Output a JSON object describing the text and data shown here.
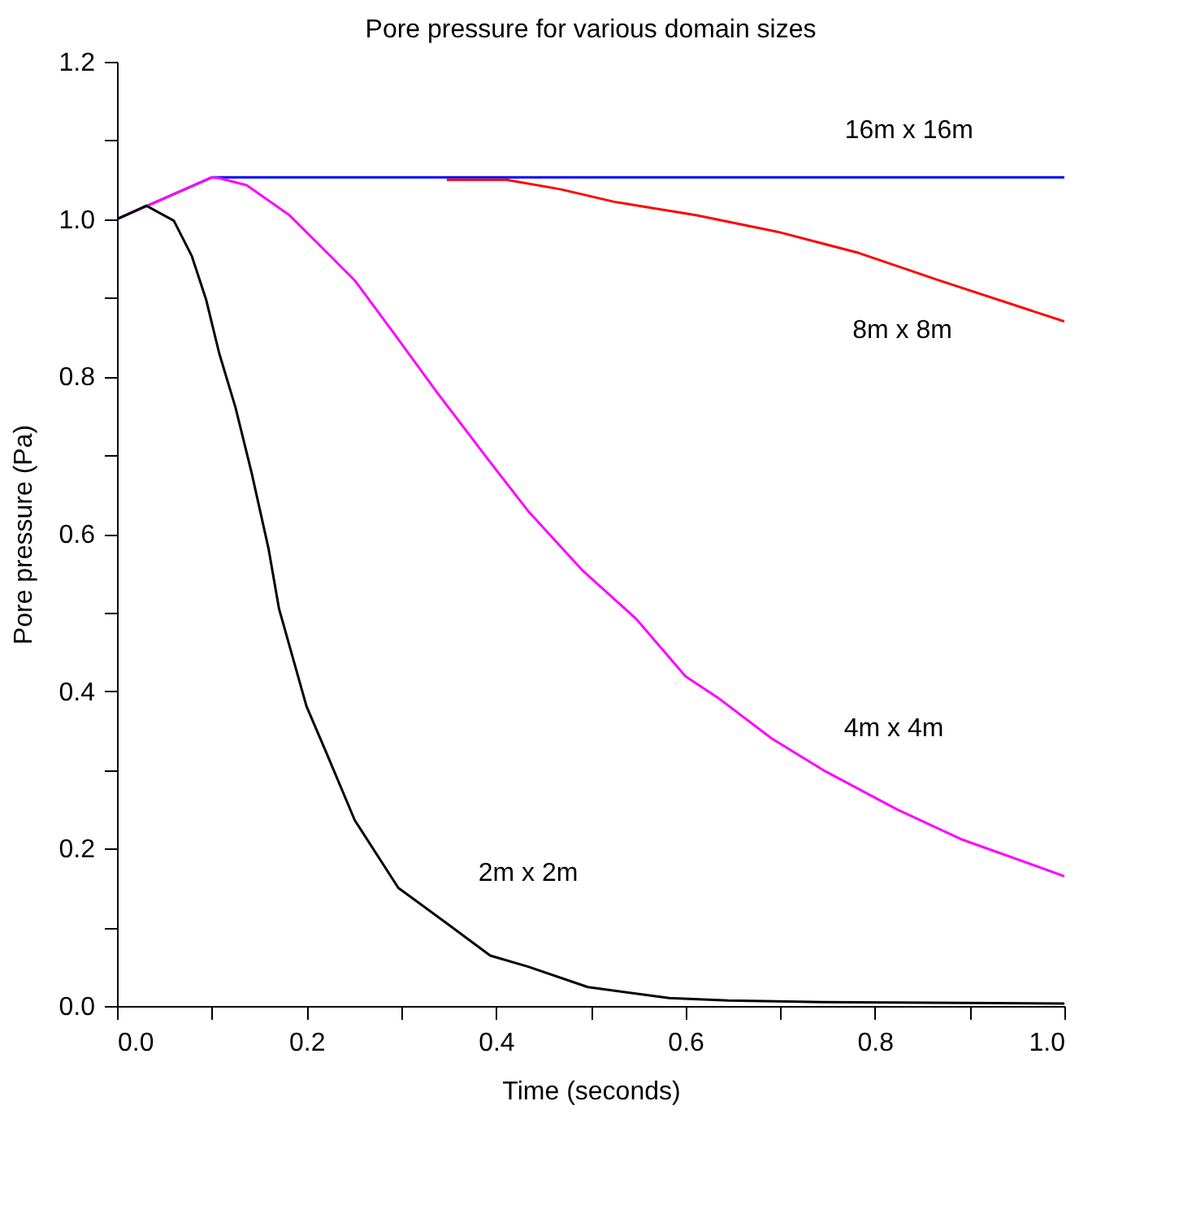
{
  "chart_data": {
    "type": "line",
    "title": "Pore pressure for various domain sizes",
    "xlabel": "Time (seconds)",
    "ylabel": "Pore pressure (Pa)",
    "xlim": [
      0,
      1
    ],
    "ylim": [
      0,
      1.2
    ],
    "xticks": [
      {
        "value": 0,
        "label": "0.0"
      },
      {
        "value": 0.1,
        "label": null
      },
      {
        "value": 0.2,
        "label": "0.2"
      },
      {
        "value": 0.3,
        "label": null
      },
      {
        "value": 0.4,
        "label": "0.4"
      },
      {
        "value": 0.5,
        "label": null
      },
      {
        "value": 0.6,
        "label": "0.6"
      },
      {
        "value": 0.7,
        "label": null
      },
      {
        "value": 0.8,
        "label": "0.8"
      },
      {
        "value": 0.9,
        "label": null
      },
      {
        "value": 1,
        "label": "1.0"
      }
    ],
    "yticks": [
      {
        "value": 0,
        "label": "0.0"
      },
      {
        "value": 0.1,
        "label": null
      },
      {
        "value": 0.2,
        "label": "0.2"
      },
      {
        "value": 0.3,
        "label": null
      },
      {
        "value": 0.4,
        "label": "0.4"
      },
      {
        "value": 0.5,
        "label": null
      },
      {
        "value": 0.6,
        "label": "0.6"
      },
      {
        "value": 0.7,
        "label": null
      },
      {
        "value": 0.8,
        "label": "0.8"
      },
      {
        "value": 0.9,
        "label": null
      },
      {
        "value": 1,
        "label": "1.0"
      },
      {
        "value": 1.1,
        "label": null
      },
      {
        "value": 1.2,
        "label": "1.2"
      }
    ],
    "grid": false,
    "legend": false,
    "marker": "none",
    "line_style": "solid",
    "series": [
      {
        "name": "16m x 16m",
        "color": "#0000ff",
        "x": [
          0,
          0.1,
          1.0
        ],
        "values": [
          1.0,
          1.053,
          1.053
        ]
      },
      {
        "name": "8m x 8m",
        "color": "#ff0000",
        "x": [
          0.348,
          0.411,
          0.468,
          0.525,
          0.611,
          0.697,
          0.783,
          0.868,
          1.0
        ],
        "values": [
          1.05,
          1.05,
          1.038,
          1.022,
          1.005,
          0.984,
          0.957,
          0.922,
          0.87
        ]
      },
      {
        "name": "4m x 4m",
        "color": "#ff00ff",
        "x": [
          0,
          0.1,
          0.108,
          0.137,
          0.182,
          0.222,
          0.251,
          0.291,
          0.337,
          0.394,
          0.434,
          0.491,
          0.548,
          0.6,
          0.634,
          0.691,
          0.748,
          0.823,
          0.891,
          1.0
        ],
        "values": [
          1.0,
          1.053,
          1.052,
          1.043,
          1.005,
          0.957,
          0.922,
          0.857,
          0.781,
          0.691,
          0.629,
          0.554,
          0.492,
          0.419,
          0.392,
          0.34,
          0.298,
          0.25,
          0.212,
          0.165
        ]
      },
      {
        "name": "2m x 2m",
        "color": "#000000",
        "x": [
          0,
          0.031,
          0.06,
          0.079,
          0.094,
          0.108,
          0.125,
          0.142,
          0.16,
          0.171,
          0.2,
          0.222,
          0.251,
          0.297,
          0.348,
          0.394,
          0.434,
          0.497,
          0.583,
          0.645,
          0.746,
          1.0
        ],
        "values": [
          1.0,
          1.017,
          0.998,
          0.953,
          0.898,
          0.829,
          0.761,
          0.678,
          0.581,
          0.505,
          0.381,
          0.319,
          0.236,
          0.15,
          0.105,
          0.064,
          0.05,
          0.024,
          0.01,
          0.007,
          0.005,
          0.003
        ]
      }
    ]
  }
}
